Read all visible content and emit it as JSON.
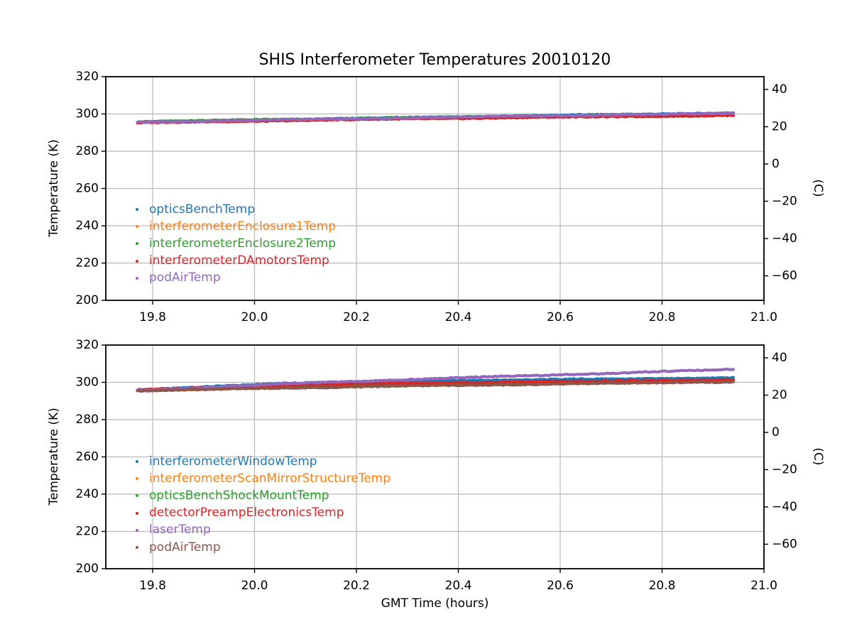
{
  "figure": {
    "title": "SHIS Interferometer Temperatures 20010120",
    "xlabel": "GMT Time (hours)",
    "background_color": "#ffffff",
    "text_color": "#000000",
    "grid_color": "#b9b9b9",
    "spine_color": "#000000"
  },
  "chart_data": [
    {
      "type": "line",
      "position": "top",
      "ylabel": "Temperature (K)",
      "right_ylabel": "(C)",
      "xlim": [
        19.708,
        21.0
      ],
      "ylim": [
        200,
        320
      ],
      "xticks": [
        19.8,
        20.0,
        20.2,
        20.4,
        20.6,
        20.8,
        21.0
      ],
      "yticks": [
        200,
        220,
        240,
        260,
        280,
        300,
        320
      ],
      "right_yticks_C": [
        40,
        20,
        0,
        -20,
        -40,
        -60
      ],
      "right_axis_offset_K": 273.15,
      "grid": true,
      "legend_position": "lower-left-inside",
      "x": [
        19.77,
        20.06,
        20.35,
        20.65,
        20.94
      ],
      "series": [
        {
          "name": "opticsBenchTemp",
          "color": "#1f77b4",
          "values": [
            295.7,
            297.0,
            298.3,
            299.5,
            300.6
          ]
        },
        {
          "name": "interferometerEnclosure1Temp",
          "color": "#ff7f0e",
          "values": [
            295.4,
            296.7,
            297.9,
            298.9,
            299.9
          ]
        },
        {
          "name": "interferometerEnclosure2Temp",
          "color": "#2ca02c",
          "values": [
            295.9,
            297.1,
            298.2,
            299.2,
            300.1
          ]
        },
        {
          "name": "interferometerDAmotorsTemp",
          "color": "#d62728",
          "values": [
            295.2,
            296.4,
            297.5,
            298.4,
            299.2
          ]
        },
        {
          "name": "podAirTemp",
          "color": "#9467bd",
          "values": [
            295.6,
            296.9,
            298.1,
            299.3,
            300.3
          ]
        }
      ]
    },
    {
      "type": "line",
      "position": "bottom",
      "ylabel": "Temperature (K)",
      "right_ylabel": "(C)",
      "xlim": [
        19.708,
        21.0
      ],
      "ylim": [
        200,
        320
      ],
      "xticks": [
        19.8,
        20.0,
        20.2,
        20.4,
        20.6,
        20.8,
        21.0
      ],
      "yticks": [
        200,
        220,
        240,
        260,
        280,
        300,
        320
      ],
      "right_yticks_C": [
        40,
        20,
        0,
        -20,
        -40,
        -60
      ],
      "right_axis_offset_K": 273.15,
      "grid": true,
      "legend_position": "lower-left-inside",
      "x": [
        19.77,
        20.06,
        20.35,
        20.65,
        20.94
      ],
      "series": [
        {
          "name": "interferometerWindowTemp",
          "color": "#1f77b4",
          "values": [
            295.8,
            299.6,
            300.9,
            301.7,
            302.4
          ]
        },
        {
          "name": "interferometerScanMirrorStructureTemp",
          "color": "#ff7f0e",
          "values": [
            295.5,
            297.3,
            298.6,
            299.6,
            300.4
          ]
        },
        {
          "name": "opticsBenchShockMountTemp",
          "color": "#2ca02c",
          "values": [
            295.7,
            297.5,
            298.8,
            299.9,
            300.8
          ]
        },
        {
          "name": "detectorPreampElectronicsTemp",
          "color": "#d62728",
          "values": [
            296.0,
            298.4,
            299.7,
            300.6,
            301.4
          ]
        },
        {
          "name": "laserTemp",
          "color": "#9467bd",
          "values": [
            295.6,
            299.2,
            302.0,
            304.5,
            307.0
          ]
        },
        {
          "name": "podAirTemp",
          "color": "#8c564b",
          "values": [
            295.4,
            297.0,
            298.2,
            299.3,
            300.3
          ]
        }
      ]
    }
  ]
}
